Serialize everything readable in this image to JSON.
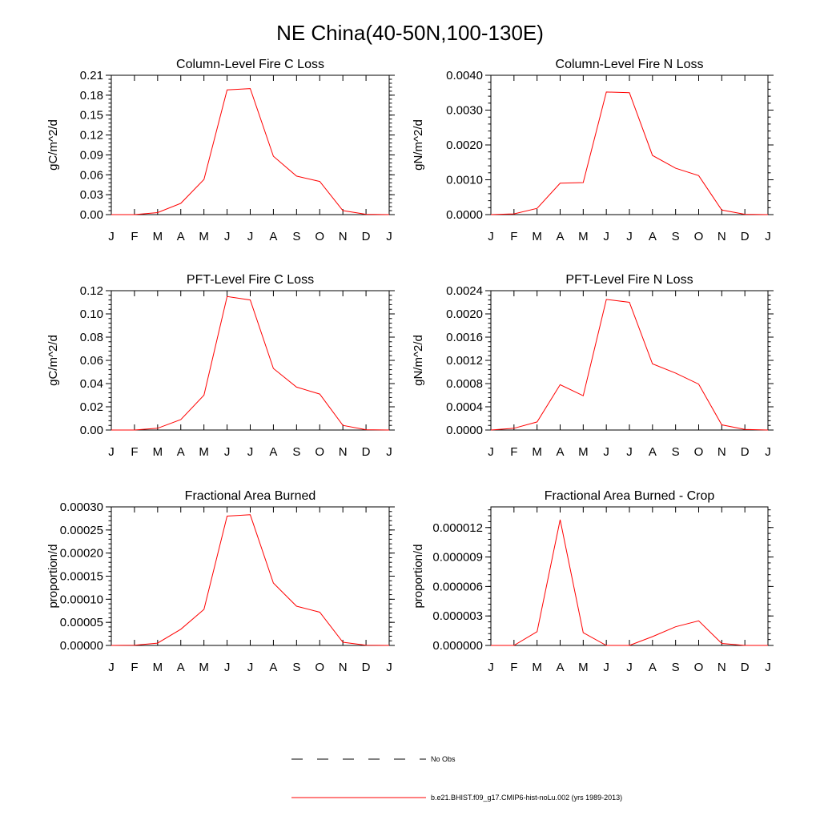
{
  "figure": {
    "title": "NE China(40-50N,100-130E)",
    "legend": [
      {
        "label": "No Obs",
        "style": "dashed",
        "color": "#000000"
      },
      {
        "label": "b.e21.BHIST.f09_g17.CMIP6-hist-noLu.002 (yrs 1989-2013)",
        "style": "solid",
        "color": "#ff0000"
      }
    ]
  },
  "chart_data": [
    {
      "type": "line",
      "title": "Column-Level Fire C Loss",
      "ylabel": "gC/m^2/d",
      "ylim": [
        0,
        0.21
      ],
      "yticks": [
        "0.00",
        "0.03",
        "0.06",
        "0.09",
        "0.12",
        "0.15",
        "0.18",
        "0.21"
      ],
      "categories": [
        "J",
        "F",
        "M",
        "A",
        "M",
        "J",
        "J",
        "A",
        "S",
        "O",
        "N",
        "D",
        "J"
      ],
      "series": [
        {
          "color": "#ff0000",
          "values": [
            0,
            0,
            0.003,
            0.017,
            0.053,
            0.188,
            0.19,
            0.088,
            0.058,
            0.05,
            0.006,
            0.0005,
            0
          ]
        }
      ]
    },
    {
      "type": "line",
      "title": "Column-Level Fire N Loss",
      "ylabel": "gN/m^2/d",
      "ylim": [
        0,
        0.004
      ],
      "yticks": [
        "0.0000",
        "0.0010",
        "0.0020",
        "0.0030",
        "0.0040"
      ],
      "categories": [
        "J",
        "F",
        "M",
        "A",
        "M",
        "J",
        "J",
        "A",
        "S",
        "O",
        "N",
        "D",
        "J"
      ],
      "series": [
        {
          "color": "#ff0000",
          "values": [
            0,
            2e-05,
            0.00018,
            0.0009,
            0.00092,
            0.00352,
            0.0035,
            0.0017,
            0.00133,
            0.00112,
            0.00013,
            1e-05,
            0
          ]
        }
      ]
    },
    {
      "type": "line",
      "title": "PFT-Level Fire C Loss",
      "ylabel": "gC/m^2/d",
      "ylim": [
        0,
        0.12
      ],
      "yticks": [
        "0.00",
        "0.02",
        "0.04",
        "0.06",
        "0.08",
        "0.10",
        "0.12"
      ],
      "categories": [
        "J",
        "F",
        "M",
        "A",
        "M",
        "J",
        "J",
        "A",
        "S",
        "O",
        "N",
        "D",
        "J"
      ],
      "series": [
        {
          "color": "#ff0000",
          "values": [
            0,
            0,
            0.0015,
            0.009,
            0.03,
            0.115,
            0.112,
            0.053,
            0.037,
            0.031,
            0.004,
            0.0003,
            0
          ]
        }
      ]
    },
    {
      "type": "line",
      "title": "PFT-Level Fire N Loss",
      "ylabel": "gN/m^2/d",
      "ylim": [
        0,
        0.0024
      ],
      "yticks": [
        "0.0000",
        "0.0004",
        "0.0008",
        "0.0012",
        "0.0016",
        "0.0020",
        "0.0024"
      ],
      "categories": [
        "J",
        "F",
        "M",
        "A",
        "M",
        "J",
        "J",
        "A",
        "S",
        "O",
        "N",
        "D",
        "J"
      ],
      "series": [
        {
          "color": "#ff0000",
          "values": [
            0,
            3e-05,
            0.00014,
            0.00078,
            0.00059,
            0.00225,
            0.0022,
            0.00114,
            0.00098,
            0.00079,
            9e-05,
            1e-05,
            0
          ]
        }
      ]
    },
    {
      "type": "line",
      "title": "Fractional Area Burned",
      "ylabel": "proportion/d",
      "ylim": [
        0,
        0.0003
      ],
      "yticks": [
        "0.00000",
        "0.00005",
        "0.00010",
        "0.00015",
        "0.00020",
        "0.00025",
        "0.00030"
      ],
      "categories": [
        "J",
        "F",
        "M",
        "A",
        "M",
        "J",
        "J",
        "A",
        "S",
        "O",
        "N",
        "D",
        "J"
      ],
      "series": [
        {
          "color": "#ff0000",
          "values": [
            0,
            5e-07,
            5e-06,
            3.5e-05,
            7.8e-05,
            0.00028,
            0.000283,
            0.000135,
            8.5e-05,
            7.2e-05,
            7e-06,
            5e-07,
            0
          ]
        }
      ]
    },
    {
      "type": "line",
      "title": "Fractional Area Burned - Crop",
      "ylabel": "proportion/d",
      "ylim": [
        0,
        1.41e-05
      ],
      "yticks": [
        "0.000000",
        "0.000003",
        "0.000006",
        "0.000009",
        "0.000012"
      ],
      "categories": [
        "J",
        "F",
        "M",
        "A",
        "M",
        "J",
        "J",
        "A",
        "S",
        "O",
        "N",
        "D",
        "J"
      ],
      "series": [
        {
          "color": "#ff0000",
          "values": [
            0,
            0,
            1.4e-06,
            1.28e-05,
            1.3e-06,
            0,
            0,
            9e-07,
            1.9e-06,
            2.5e-06,
            2e-07,
            0,
            0
          ]
        }
      ]
    }
  ]
}
